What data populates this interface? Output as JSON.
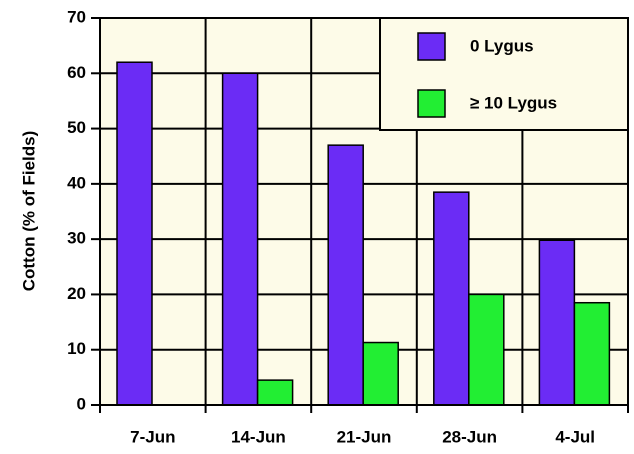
{
  "chart_data": {
    "type": "bar",
    "y_label": "Cotton (% of Fields)",
    "categories": [
      "7-Jun",
      "14-Jun",
      "21-Jun",
      "28-Jun",
      "4-Jul"
    ],
    "series": [
      {
        "name": "0 Lygus",
        "color": "#6b2cf5",
        "values": [
          62,
          60,
          47,
          38.5,
          29.8
        ]
      },
      {
        "name": "≥ 10 Lygus",
        "color": "#22ee33",
        "values": [
          null,
          4.5,
          11.3,
          20,
          18.5
        ]
      }
    ],
    "ylim": [
      0,
      70
    ],
    "yticks": [
      0,
      10,
      20,
      30,
      40,
      50,
      60,
      70
    ],
    "grid": true,
    "legend": "top-right"
  }
}
